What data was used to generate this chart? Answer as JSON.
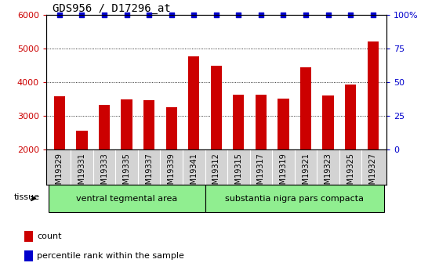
{
  "title": "GDS956 / D17296_at",
  "categories": [
    "GSM19329",
    "GSM19331",
    "GSM19333",
    "GSM19335",
    "GSM19337",
    "GSM19339",
    "GSM19341",
    "GSM19312",
    "GSM19315",
    "GSM19317",
    "GSM19319",
    "GSM19321",
    "GSM19323",
    "GSM19325",
    "GSM19327"
  ],
  "count_values": [
    3580,
    2560,
    3330,
    3490,
    3480,
    3270,
    4780,
    4500,
    3630,
    3640,
    3510,
    4450,
    3620,
    3940,
    5200
  ],
  "bar_color": "#cc0000",
  "dot_color": "#0000cc",
  "ylim_left": [
    2000,
    6000
  ],
  "ylim_right": [
    0,
    100
  ],
  "yticks_left": [
    2000,
    3000,
    4000,
    5000,
    6000
  ],
  "yticks_right": [
    0,
    25,
    50,
    75,
    100
  ],
  "ytick_labels_right": [
    "0",
    "25",
    "50",
    "75",
    "100%"
  ],
  "group1_label": "ventral tegmental area",
  "group2_label": "substantia nigra pars compacta",
  "group1_count": 7,
  "group2_count": 8,
  "tissue_label": "tissue",
  "legend_count": "count",
  "legend_percentile": "percentile rank within the sample",
  "plot_bg_color": "#ffffff",
  "xtick_bg_color": "#d3d3d3",
  "group_bg": "#90ee90",
  "bar_width": 0.5,
  "dot_yval": 6000,
  "dot_size": 20,
  "bar_bottom": 2000
}
